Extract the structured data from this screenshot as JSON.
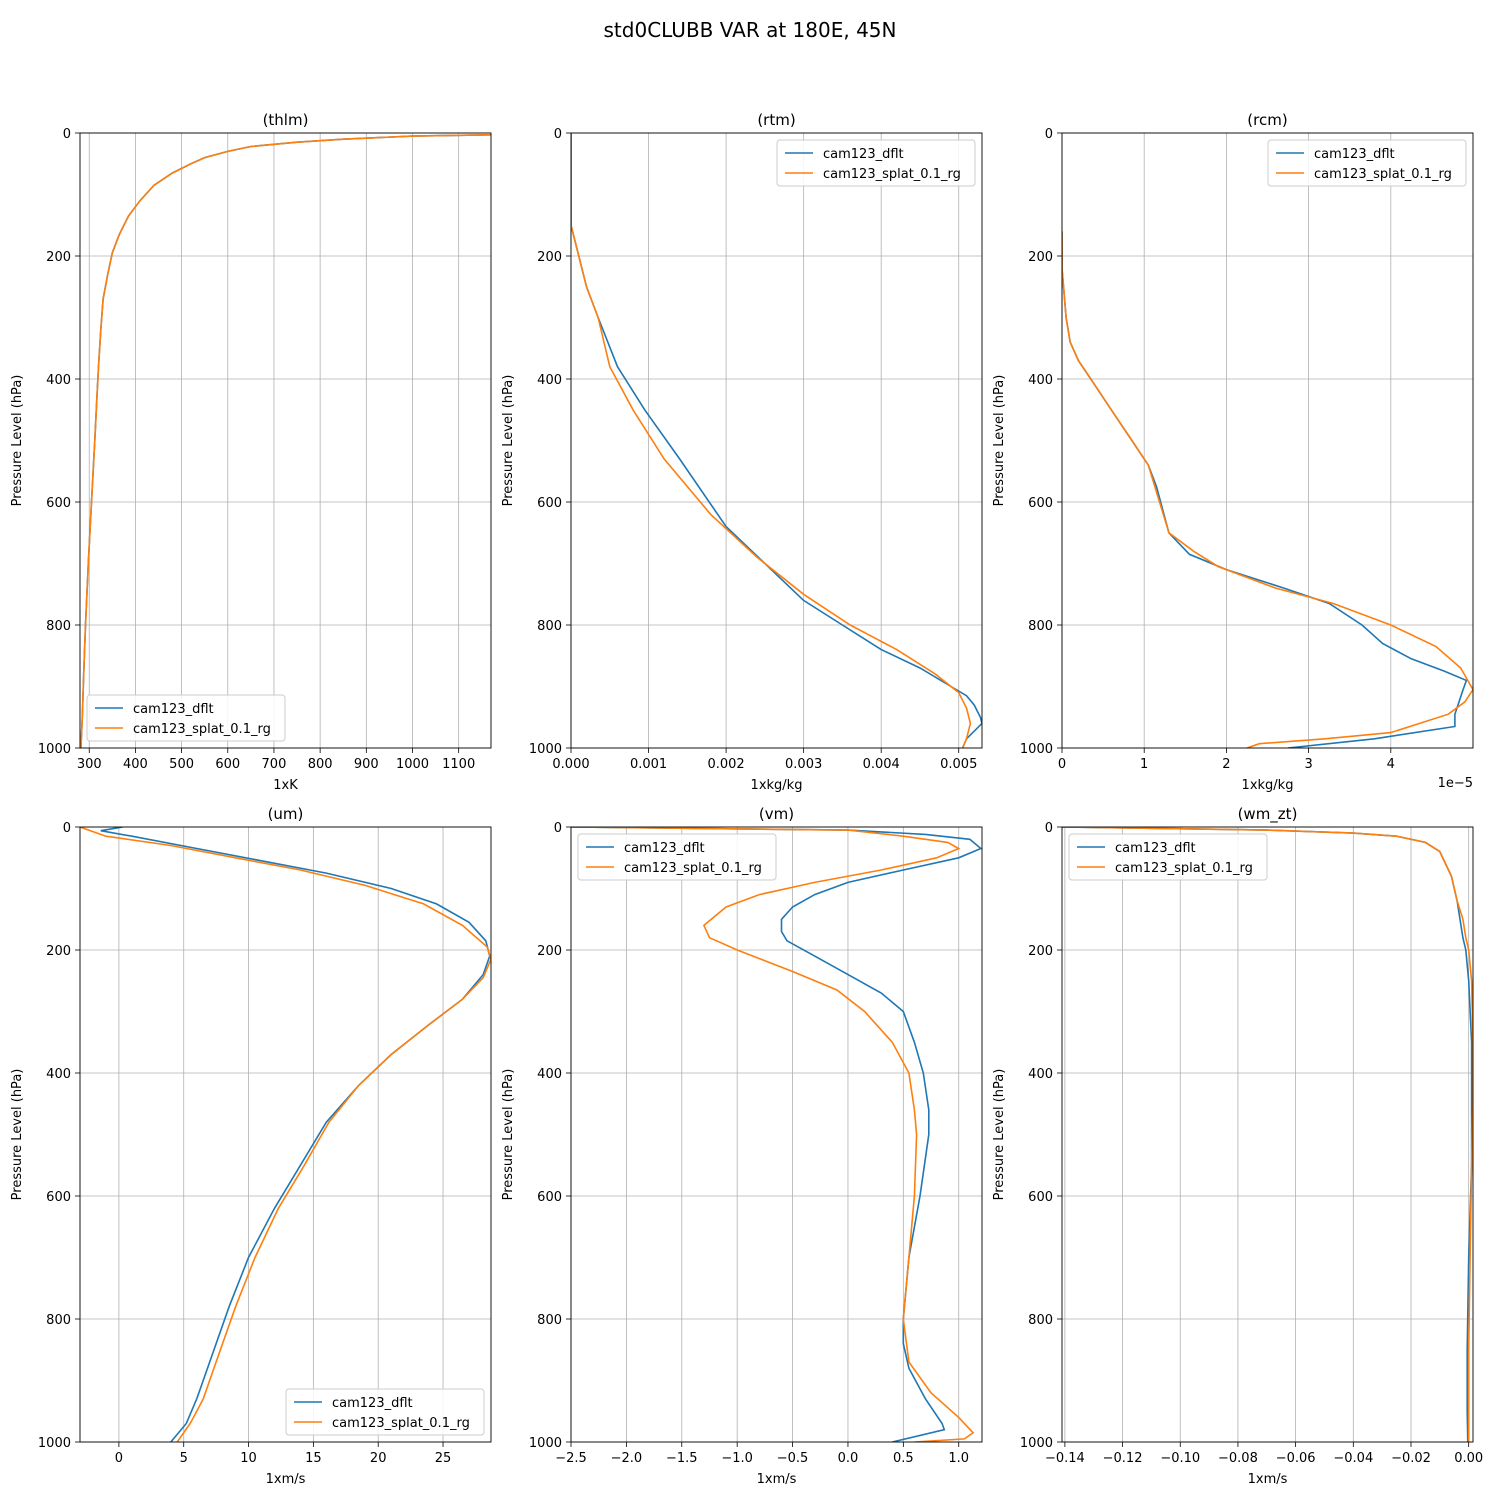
{
  "figure": {
    "title": "std0CLUBB VAR at 180E, 45N"
  },
  "series_names": [
    "cam123_dflt",
    "cam123_splat_0.1_rg"
  ],
  "colors": {
    "cam123_dflt": "#1f77b4",
    "cam123_splat_0.1_rg": "#ff7f0e",
    "grid": "#b0b0b0"
  },
  "chart_data": [
    {
      "type": "line",
      "title": "(thlm)",
      "xlabel": "1xK",
      "ylabel": "Pressure Level (hPa)",
      "xlim": [
        280,
        1170
      ],
      "ylim": [
        1000,
        0
      ],
      "xticks": [
        300,
        400,
        500,
        600,
        700,
        800,
        900,
        1000,
        1100
      ],
      "xtick_labels": [
        "300",
        "400",
        "500",
        "600",
        "700",
        "800",
        "900",
        "1000",
        "1100"
      ],
      "yticks": [
        0,
        200,
        400,
        600,
        800,
        1000
      ],
      "ytick_labels": [
        "0",
        "200",
        "400",
        "600",
        "800",
        "1000"
      ],
      "grid": true,
      "legend": "lower left",
      "series": [
        {
          "name": "cam123_dflt",
          "x": [
            1170,
            1000,
            850,
            750,
            650,
            600,
            550,
            520,
            480,
            440,
            410,
            385,
            365,
            350,
            340,
            330,
            325,
            320,
            316,
            312,
            305,
            298,
            292,
            288,
            285,
            282
          ],
          "y": [
            3,
            5,
            10,
            15,
            22,
            30,
            40,
            50,
            65,
            85,
            110,
            135,
            165,
            195,
            230,
            270,
            320,
            380,
            440,
            500,
            600,
            700,
            800,
            880,
            950,
            1000
          ]
        },
        {
          "name": "cam123_splat_0.1_rg",
          "x": [
            1170,
            1000,
            850,
            750,
            650,
            600,
            550,
            520,
            480,
            440,
            410,
            385,
            365,
            350,
            340,
            330,
            325,
            320,
            316,
            312,
            305,
            298,
            292,
            288,
            285,
            282
          ],
          "y": [
            3,
            5,
            10,
            15,
            22,
            30,
            40,
            50,
            65,
            85,
            110,
            135,
            165,
            195,
            230,
            270,
            320,
            380,
            440,
            500,
            600,
            700,
            800,
            880,
            950,
            1000
          ]
        }
      ]
    },
    {
      "type": "line",
      "title": "(rtm)",
      "xlabel": "1xkg/kg",
      "ylabel": "Pressure Level (hPa)",
      "xlim": [
        0,
        0.0053
      ],
      "ylim": [
        1000,
        0
      ],
      "xticks": [
        0,
        0.001,
        0.002,
        0.003,
        0.004,
        0.005
      ],
      "xtick_labels": [
        "0.000",
        "0.001",
        "0.002",
        "0.003",
        "0.004",
        "0.005"
      ],
      "yticks": [
        0,
        200,
        400,
        600,
        800,
        1000
      ],
      "ytick_labels": [
        "0",
        "200",
        "400",
        "600",
        "800",
        "1000"
      ],
      "grid": true,
      "legend": "upper right",
      "series": [
        {
          "name": "cam123_dflt",
          "x": [
            0,
            0,
            0.0001,
            0.0002,
            0.00035,
            0.0006,
            0.00095,
            0.0014,
            0.002,
            0.0025,
            0.003,
            0.0035,
            0.004,
            0.0045,
            0.0049,
            0.0051,
            0.0052,
            0.00528,
            0.0053,
            0.0051,
            0.00505
          ],
          "y": [
            0,
            150,
            200,
            250,
            300,
            380,
            450,
            530,
            640,
            700,
            760,
            800,
            840,
            870,
            900,
            915,
            930,
            950,
            960,
            985,
            1000
          ]
        },
        {
          "name": "cam123_splat_0.1_rg",
          "x": [
            0,
            0,
            0.0001,
            0.0002,
            0.00035,
            0.0005,
            0.0008,
            0.0012,
            0.0018,
            0.0024,
            0.003,
            0.0036,
            0.0042,
            0.0047,
            0.005,
            0.0051,
            0.00515,
            0.0051,
            0.00505
          ],
          "y": [
            0,
            150,
            200,
            250,
            300,
            380,
            450,
            530,
            620,
            690,
            750,
            800,
            840,
            880,
            910,
            935,
            960,
            985,
            1000
          ]
        }
      ]
    },
    {
      "type": "line",
      "title": "(rcm)",
      "xlabel": "1xkg/kg",
      "ylabel": "Pressure Level (hPa)",
      "xlim": [
        0,
        5e-05
      ],
      "ylim": [
        1000,
        0
      ],
      "xticks": [
        0,
        1e-05,
        2e-05,
        3e-05,
        4e-05
      ],
      "xtick_labels": [
        "0",
        "1",
        "2",
        "3",
        "4"
      ],
      "offset_label": "1e−5",
      "yticks": [
        0,
        200,
        400,
        600,
        800,
        1000
      ],
      "ytick_labels": [
        "0",
        "200",
        "400",
        "600",
        "800",
        "1000"
      ],
      "grid": true,
      "legend": "upper right",
      "series": [
        {
          "name": "cam123_dflt",
          "x": [
            0,
            0,
            5e-07,
            1e-06,
            2e-06,
            3.5e-06,
            6e-06,
            8.5e-06,
            1.05e-05,
            1.15e-05,
            1.3e-05,
            1.55e-05,
            2e-05,
            2.7e-05,
            3.25e-05,
            3.65e-05,
            3.9e-05,
            4.25e-05,
            4.65e-05,
            4.92e-05,
            4.88e-05,
            4.78e-05,
            4.78e-05,
            3.8e-05,
            2.75e-05
          ],
          "y": [
            160,
            220,
            300,
            340,
            370,
            400,
            450,
            500,
            540,
            575,
            650,
            685,
            710,
            740,
            765,
            800,
            830,
            855,
            875,
            890,
            905,
            945,
            965,
            985,
            1000
          ]
        },
        {
          "name": "cam123_splat_0.1_rg",
          "x": [
            0,
            0,
            5e-07,
            1e-06,
            2e-06,
            3.5e-06,
            6e-06,
            8.5e-06,
            1.05e-05,
            1.3e-05,
            1.6e-05,
            1.9e-05,
            2.6e-05,
            3.3e-05,
            4e-05,
            4.55e-05,
            4.85e-05,
            5e-05,
            4.9e-05,
            4.7e-05,
            4.35e-05,
            4e-05,
            3.2e-05,
            2.4e-05,
            2.25e-05
          ],
          "y": [
            160,
            220,
            300,
            340,
            370,
            400,
            450,
            500,
            540,
            650,
            680,
            705,
            740,
            765,
            800,
            835,
            870,
            905,
            925,
            945,
            960,
            975,
            985,
            993,
            1000
          ]
        }
      ]
    },
    {
      "type": "line",
      "title": "(um)",
      "xlabel": "1xm/s",
      "ylabel": "Pressure Level (hPa)",
      "xlim": [
        -3,
        28.7
      ],
      "ylim": [
        1000,
        0
      ],
      "xticks": [
        0,
        5,
        10,
        15,
        20,
        25
      ],
      "xtick_labels": [
        "0",
        "5",
        "10",
        "15",
        "20",
        "25"
      ],
      "yticks": [
        0,
        200,
        400,
        600,
        800,
        1000
      ],
      "ytick_labels": [
        "0",
        "200",
        "400",
        "600",
        "800",
        "1000"
      ],
      "grid": true,
      "legend": "lower right",
      "series": [
        {
          "name": "cam123_dflt",
          "x": [
            0.3,
            -1.4,
            1.0,
            6.0,
            11.0,
            16.0,
            21.0,
            24.5,
            27.0,
            28.3,
            28.6,
            28.1,
            26.5,
            24.0,
            21.0,
            18.5,
            16.0,
            14.0,
            12.0,
            10.0,
            8.5,
            7.0,
            6.0,
            5.2,
            4.0
          ],
          "y": [
            0,
            6,
            15,
            35,
            55,
            75,
            100,
            125,
            155,
            185,
            210,
            240,
            280,
            320,
            370,
            420,
            480,
            550,
            620,
            700,
            780,
            870,
            930,
            970,
            1000
          ]
        },
        {
          "name": "cam123_splat_0.1_rg",
          "x": [
            -3.0,
            -1.0,
            4.0,
            9.0,
            14.0,
            19.0,
            23.5,
            26.5,
            28.4,
            28.7,
            28.1,
            26.5,
            24.0,
            21.0,
            18.5,
            16.2,
            14.3,
            12.3,
            10.5,
            9.0,
            7.5,
            6.5,
            5.5,
            4.5
          ],
          "y": [
            0,
            15,
            30,
            50,
            70,
            95,
            125,
            160,
            195,
            215,
            245,
            280,
            320,
            370,
            420,
            480,
            550,
            620,
            700,
            780,
            870,
            930,
            970,
            1000
          ]
        }
      ]
    },
    {
      "type": "line",
      "title": "(vm)",
      "xlabel": "1xm/s",
      "ylabel": "Pressure Level (hPa)",
      "xlim": [
        -2.5,
        1.21
      ],
      "ylim": [
        1000,
        0
      ],
      "xticks": [
        -2.5,
        -2.0,
        -1.5,
        -1.0,
        -0.5,
        0.0,
        0.5,
        1.0
      ],
      "xtick_labels": [
        "−2.5",
        "−2.0",
        "−1.5",
        "−1.0",
        "−0.5",
        "0.0",
        "0.5",
        "1.0"
      ],
      "yticks": [
        0,
        200,
        400,
        600,
        800,
        1000
      ],
      "ytick_labels": [
        "0",
        "200",
        "400",
        "600",
        "800",
        "1000"
      ],
      "grid": true,
      "legend": "upper left",
      "series": [
        {
          "name": "cam123_dflt",
          "x": [
            -2.5,
            0.0,
            0.7,
            1.1,
            1.2,
            1.0,
            0.5,
            0.0,
            -0.3,
            -0.5,
            -0.6,
            -0.6,
            -0.55,
            -0.3,
            0.0,
            0.3,
            0.5,
            0.6,
            0.68,
            0.73,
            0.73,
            0.65,
            0.55,
            0.5,
            0.5,
            0.55,
            0.7,
            0.85,
            0.87,
            0.4
          ],
          "y": [
            0,
            5,
            12,
            20,
            35,
            50,
            70,
            90,
            110,
            130,
            150,
            170,
            185,
            210,
            240,
            270,
            300,
            350,
            400,
            460,
            500,
            600,
            700,
            800,
            840,
            880,
            930,
            970,
            980,
            1000
          ]
        },
        {
          "name": "cam123_splat_0.1_rg",
          "x": [
            -2.5,
            0.0,
            0.5,
            0.9,
            1.0,
            0.8,
            0.3,
            -0.3,
            -0.8,
            -1.1,
            -1.3,
            -1.25,
            -1.0,
            -0.5,
            -0.1,
            0.15,
            0.4,
            0.55,
            0.6,
            0.62,
            0.6,
            0.55,
            0.5,
            0.55,
            0.75,
            1.0,
            1.13,
            1.05,
            0.6
          ],
          "y": [
            0,
            5,
            15,
            25,
            35,
            50,
            70,
            90,
            110,
            130,
            160,
            180,
            200,
            235,
            265,
            300,
            350,
            400,
            460,
            500,
            600,
            700,
            800,
            870,
            920,
            960,
            985,
            995,
            1000
          ]
        }
      ]
    },
    {
      "type": "line",
      "title": "(wm_zt)",
      "xlabel": "1xm/s",
      "ylabel": "Pressure Level (hPa)",
      "xlim": [
        -0.141,
        0.0015
      ],
      "ylim": [
        1000,
        0
      ],
      "xticks": [
        -0.14,
        -0.12,
        -0.1,
        -0.08,
        -0.06,
        -0.04,
        -0.02,
        0.0
      ],
      "xtick_labels": [
        "−0.14",
        "−0.12",
        "−0.10",
        "−0.08",
        "−0.06",
        "−0.04",
        "−0.02",
        "0.00"
      ],
      "yticks": [
        0,
        200,
        400,
        600,
        800,
        1000
      ],
      "ytick_labels": [
        "0",
        "200",
        "400",
        "600",
        "800",
        "1000"
      ],
      "grid": true,
      "legend": "upper left",
      "series": [
        {
          "name": "cam123_dflt",
          "x": [
            -0.141,
            -0.07,
            -0.04,
            -0.025,
            -0.015,
            -0.01,
            -0.008,
            -0.006,
            -0.004,
            -0.003,
            -0.002,
            -0.001,
            0.0,
            0.001,
            0.001,
            0.001,
            0.0,
            -0.0005,
            -0.0005,
            -0.0003
          ],
          "y": [
            0,
            5,
            10,
            15,
            25,
            40,
            60,
            80,
            120,
            150,
            180,
            200,
            250,
            350,
            450,
            550,
            700,
            850,
            950,
            1000
          ]
        },
        {
          "name": "cam123_splat_0.1_rg",
          "x": [
            -0.141,
            -0.07,
            -0.04,
            -0.025,
            -0.015,
            -0.01,
            -0.008,
            -0.006,
            -0.004,
            -0.002,
            -0.001,
            0.0,
            0.001,
            0.0015,
            0.0015,
            0.001,
            0.0005,
            0.0,
            0.0,
            0.0
          ],
          "y": [
            0,
            5,
            10,
            15,
            25,
            40,
            60,
            80,
            120,
            150,
            180,
            200,
            250,
            350,
            450,
            550,
            700,
            850,
            950,
            1000
          ]
        }
      ]
    }
  ]
}
